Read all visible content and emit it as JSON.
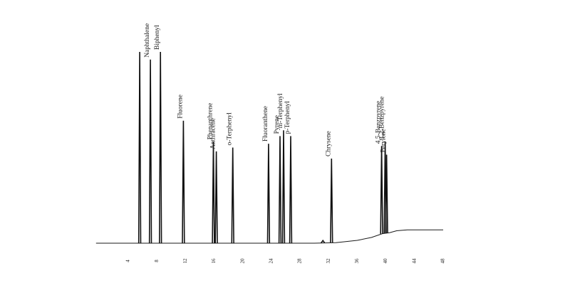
{
  "chart_data": {
    "type": "line",
    "title": "",
    "xlabel": "",
    "ylabel": "",
    "xlim": [
      -0.5,
      48
    ],
    "ylim": [
      0,
      100
    ],
    "x_ticks": [
      "4",
      "8",
      "12",
      "16",
      "20",
      "24",
      "28",
      "32",
      "36",
      "40",
      "44",
      "48"
    ],
    "baseline": [
      [
        -0.5,
        0
      ],
      [
        30,
        0
      ],
      [
        33,
        0.3
      ],
      [
        36,
        1.5
      ],
      [
        38,
        3
      ],
      [
        39.5,
        5
      ],
      [
        40.5,
        5.5
      ],
      [
        41.5,
        6.5
      ],
      [
        43,
        7
      ],
      [
        48,
        7
      ]
    ],
    "peaks": [
      {
        "name": "",
        "x": 5.6,
        "height": 100,
        "label": false
      },
      {
        "name": "Naphthalene",
        "x": 7.1,
        "height": 96,
        "label": true
      },
      {
        "name": "Biphenyl",
        "x": 8.5,
        "height": 100,
        "label": true
      },
      {
        "name": "Fluorene",
        "x": 11.7,
        "height": 64,
        "label": true
      },
      {
        "name": "Phenanthrene",
        "x": 15.9,
        "height": 53,
        "label": true
      },
      {
        "name": "Anthracene",
        "x": 16.3,
        "height": 48,
        "label": true
      },
      {
        "name": "o-Terphenyl",
        "x": 18.6,
        "height": 50,
        "label": true
      },
      {
        "name": "Fluoranthene",
        "x": 23.6,
        "height": 52,
        "label": true
      },
      {
        "name": "Pyrene",
        "x": 25.2,
        "height": 56,
        "label": true
      },
      {
        "name": "m-Terphenyl",
        "x": 25.7,
        "height": 59,
        "label": true
      },
      {
        "name": "p-Terphenyl",
        "x": 26.7,
        "height": 56,
        "label": true
      },
      {
        "name": "",
        "x": 31.2,
        "height": 1.3,
        "label": false
      },
      {
        "name": "Chrysene",
        "x": 32.4,
        "height": 44,
        "label": true
      },
      {
        "name": "4,5-Benzpyrene",
        "x": 39.4,
        "height": 46,
        "label": true
      },
      {
        "name": "1,2-Benzpyrene",
        "x": 39.9,
        "height": 48,
        "label": true
      },
      {
        "name": "Perylene",
        "x": 40.1,
        "height": 41,
        "label": true
      }
    ]
  }
}
